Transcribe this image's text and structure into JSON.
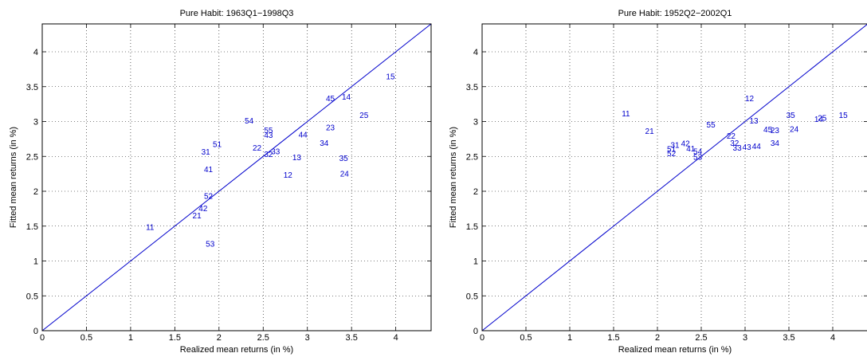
{
  "chart_data": [
    {
      "type": "scatter",
      "title": "Pure Habit: 1963Q1−1998Q3",
      "xlabel": "Realized mean returns (in %)",
      "ylabel": "Fitted mean returns (in %)",
      "xlim": [
        0,
        4.4
      ],
      "ylim": [
        0,
        4.4
      ],
      "xticks": [
        "0",
        "0.5",
        "1",
        "1.5",
        "2",
        "2.5",
        "3",
        "3.5",
        "4"
      ],
      "yticks": [
        "0",
        "0.5",
        "1",
        "1.5",
        "2",
        "2.5",
        "3",
        "3.5",
        "4"
      ],
      "grid": true,
      "reference_line": "45-degree",
      "color": "#0000cc",
      "points": [
        {
          "label": "11",
          "x": 1.22,
          "y": 1.49
        },
        {
          "label": "12",
          "x": 2.78,
          "y": 2.24
        },
        {
          "label": "13",
          "x": 2.88,
          "y": 2.49
        },
        {
          "label": "14",
          "x": 3.44,
          "y": 3.36
        },
        {
          "label": "15",
          "x": 3.94,
          "y": 3.65
        },
        {
          "label": "21",
          "x": 1.75,
          "y": 1.66
        },
        {
          "label": "22",
          "x": 2.43,
          "y": 2.63
        },
        {
          "label": "23",
          "x": 3.26,
          "y": 2.92
        },
        {
          "label": "24",
          "x": 3.42,
          "y": 2.26
        },
        {
          "label": "25",
          "x": 3.64,
          "y": 3.1
        },
        {
          "label": "31",
          "x": 1.85,
          "y": 2.57
        },
        {
          "label": "32",
          "x": 2.56,
          "y": 2.54
        },
        {
          "label": "33",
          "x": 2.64,
          "y": 2.58
        },
        {
          "label": "34",
          "x": 3.19,
          "y": 2.7
        },
        {
          "label": "35",
          "x": 3.41,
          "y": 2.48
        },
        {
          "label": "41",
          "x": 1.88,
          "y": 2.32
        },
        {
          "label": "42",
          "x": 1.82,
          "y": 1.76
        },
        {
          "label": "43",
          "x": 2.56,
          "y": 2.81
        },
        {
          "label": "44",
          "x": 2.95,
          "y": 2.82
        },
        {
          "label": "45",
          "x": 3.26,
          "y": 3.34
        },
        {
          "label": "51",
          "x": 1.98,
          "y": 2.68
        },
        {
          "label": "52",
          "x": 1.88,
          "y": 1.94
        },
        {
          "label": "53",
          "x": 1.9,
          "y": 1.25
        },
        {
          "label": "54",
          "x": 2.34,
          "y": 3.02
        },
        {
          "label": "55",
          "x": 2.56,
          "y": 2.88
        }
      ]
    },
    {
      "type": "scatter",
      "title": "Pure Habit: 1952Q2−2002Q1",
      "xlabel": "Realized mean returns (in %)",
      "ylabel": "Fitted mean returns (in %)",
      "xlim": [
        0,
        4.4
      ],
      "ylim": [
        0,
        4.4
      ],
      "xticks": [
        "0",
        "0.5",
        "1",
        "1.5",
        "2",
        "2.5",
        "3",
        "3.5",
        "4"
      ],
      "yticks": [
        "0",
        "0.5",
        "1",
        "1.5",
        "2",
        "2.5",
        "3",
        "3.5",
        "4"
      ],
      "grid": true,
      "reference_line": "45-degree",
      "color": "#0000cc",
      "points": [
        {
          "label": "11",
          "x": 1.64,
          "y": 3.12
        },
        {
          "label": "12",
          "x": 3.05,
          "y": 3.34
        },
        {
          "label": "13",
          "x": 3.1,
          "y": 3.02
        },
        {
          "label": "14",
          "x": 3.84,
          "y": 3.04
        },
        {
          "label": "15",
          "x": 4.12,
          "y": 3.1
        },
        {
          "label": "21",
          "x": 1.91,
          "y": 2.87
        },
        {
          "label": "22",
          "x": 2.84,
          "y": 2.8
        },
        {
          "label": "23",
          "x": 3.34,
          "y": 2.88
        },
        {
          "label": "24",
          "x": 3.56,
          "y": 2.9
        },
        {
          "label": "25",
          "x": 3.88,
          "y": 3.06
        },
        {
          "label": "31",
          "x": 2.2,
          "y": 2.67
        },
        {
          "label": "32",
          "x": 2.88,
          "y": 2.7
        },
        {
          "label": "33",
          "x": 2.91,
          "y": 2.63
        },
        {
          "label": "34",
          "x": 3.34,
          "y": 2.7
        },
        {
          "label": "35",
          "x": 3.52,
          "y": 3.1
        },
        {
          "label": "41",
          "x": 2.38,
          "y": 2.62
        },
        {
          "label": "42",
          "x": 2.32,
          "y": 2.69
        },
        {
          "label": "43",
          "x": 3.02,
          "y": 2.64
        },
        {
          "label": "44",
          "x": 3.13,
          "y": 2.65
        },
        {
          "label": "45",
          "x": 3.26,
          "y": 2.89
        },
        {
          "label": "51",
          "x": 2.16,
          "y": 2.61
        },
        {
          "label": "52",
          "x": 2.16,
          "y": 2.55
        },
        {
          "label": "53",
          "x": 2.46,
          "y": 2.5
        },
        {
          "label": "54",
          "x": 2.46,
          "y": 2.58
        },
        {
          "label": "55",
          "x": 2.61,
          "y": 2.96
        }
      ]
    }
  ]
}
